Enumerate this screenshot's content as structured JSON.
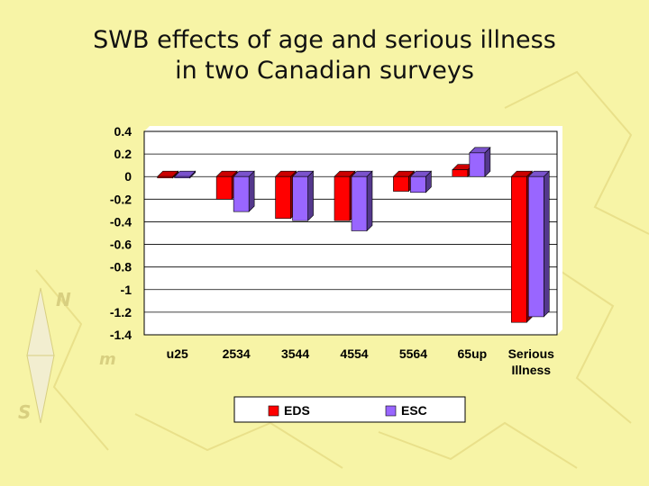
{
  "slide": {
    "title_line1": "SWB effects of age and serious illness",
    "title_line2": "in two Canadian surveys"
  },
  "colors": {
    "background": "#f7f4a6",
    "eds": "#ff0000",
    "esc": "#9966ff",
    "deco": "#e9e08a"
  },
  "chart_data": {
    "type": "bar",
    "categories": [
      "u25",
      "2534",
      "3544",
      "4554",
      "5564",
      "65up",
      "Serious Illness"
    ],
    "series": [
      {
        "name": "EDS",
        "values": [
          -0.01,
          -0.2,
          -0.37,
          -0.39,
          -0.13,
          0.06,
          -1.29
        ]
      },
      {
        "name": "ESC",
        "values": [
          -0.01,
          -0.31,
          -0.39,
          -0.48,
          -0.14,
          0.21,
          -1.24
        ]
      }
    ],
    "ylim": [
      -1.4,
      0.4
    ],
    "yticks": [
      "0.4",
      "0.2",
      "0",
      "-0.2",
      "-0.4",
      "-0.6",
      "-0.8",
      "-1",
      "-1.2",
      "-1.4"
    ],
    "grid": true,
    "legend_position": "bottom"
  }
}
